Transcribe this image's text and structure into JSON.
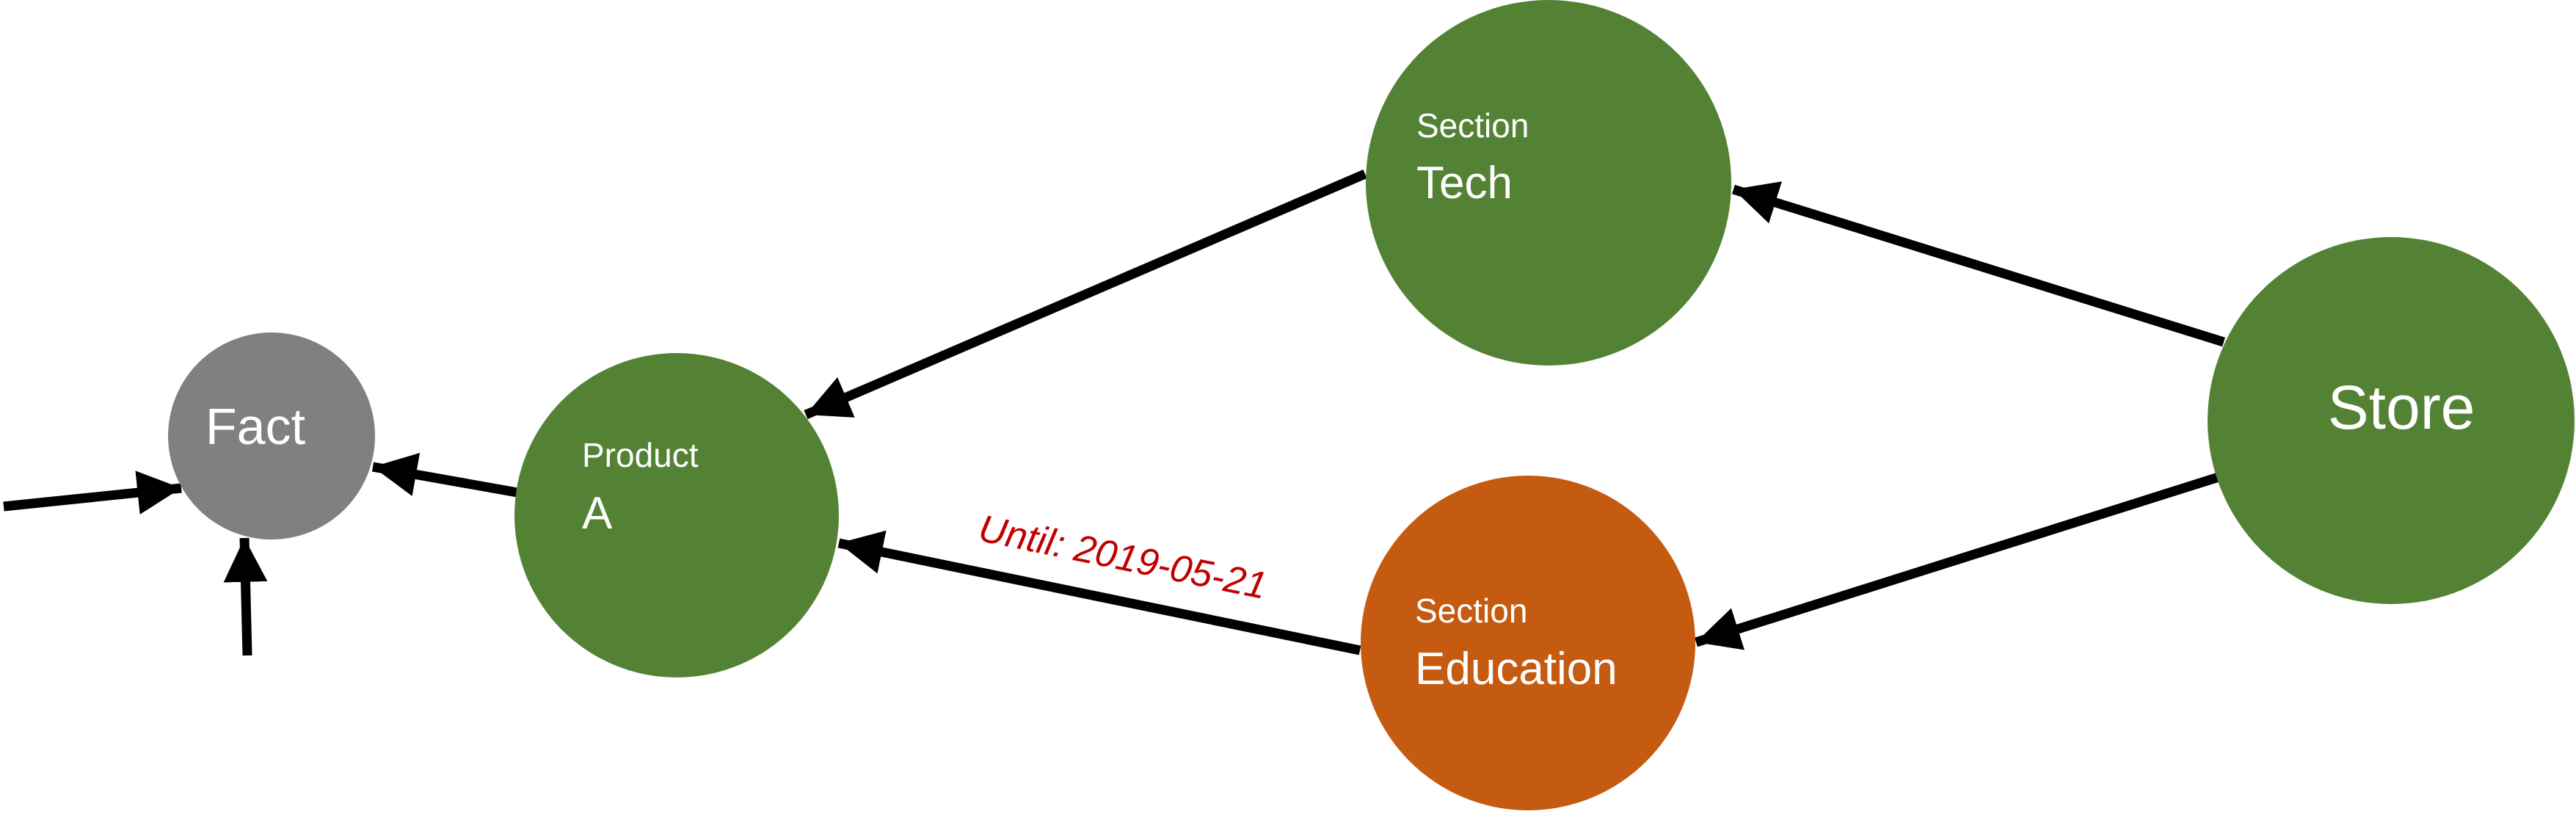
{
  "colors": {
    "tech_green": "#548235",
    "education_orange": "#C55A11",
    "fact_gray": "#808080",
    "edge_black": "#000000",
    "label_red": "#C00000",
    "node_text": "#ffffff"
  },
  "nodes": {
    "fact": {
      "name": "Fact"
    },
    "product": {
      "kind": "Product",
      "name": "A"
    },
    "tech": {
      "kind": "Section",
      "name": "Tech"
    },
    "education": {
      "kind": "Section",
      "name": "Education"
    },
    "store": {
      "name": "Store"
    }
  },
  "edges": {
    "education_to_product": {
      "label": "Until: 2019-05-21"
    }
  }
}
